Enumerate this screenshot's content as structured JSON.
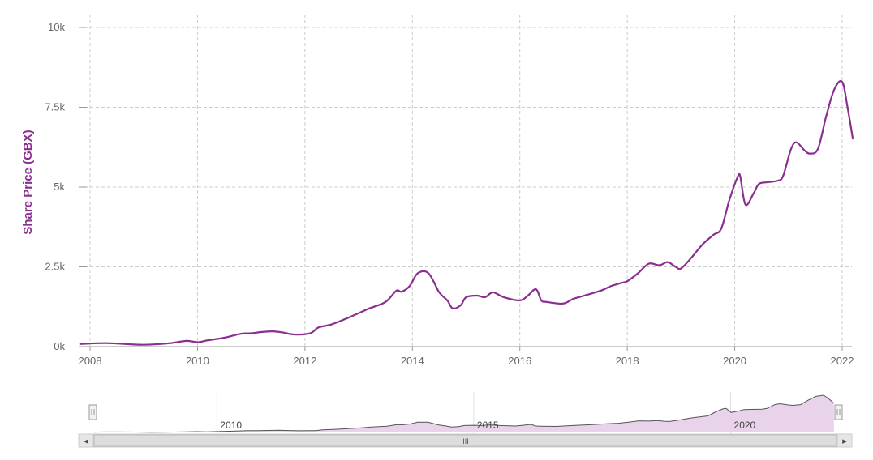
{
  "colors": {
    "series": "#8a2e8f",
    "grid": "#cccccc",
    "nav_fill": "#e9d3ea",
    "nav_line": "#555555",
    "scrollbar": "#e6e6e6"
  },
  "chart_data": {
    "type": "line",
    "ylabel": "Share Price (GBX)",
    "xlabel": "",
    "title": "",
    "ylim": [
      0,
      10000
    ],
    "xlim": [
      2007.8,
      2022.25
    ],
    "y_ticks": [
      0,
      2500,
      5000,
      7500,
      10000
    ],
    "y_tick_labels": [
      "0k",
      "2.5k",
      "5k",
      "7.5k",
      "10k"
    ],
    "x_ticks": [
      2008,
      2010,
      2012,
      2014,
      2016,
      2018,
      2020,
      2022
    ],
    "x_tick_labels": [
      "2008",
      "2010",
      "2012",
      "2014",
      "2016",
      "2018",
      "2020",
      "2022"
    ],
    "grid": true,
    "series": [
      {
        "x": [
          2007.8,
          2008.0,
          2008.3,
          2008.6,
          2008.9,
          2009.2,
          2009.5,
          2009.8,
          2010.0,
          2010.2,
          2010.5,
          2010.8,
          2011.0,
          2011.2,
          2011.4,
          2011.6,
          2011.8,
          2012.1,
          2012.25,
          2012.5,
          2012.8,
          2013.0,
          2013.2,
          2013.5,
          2013.7,
          2013.8,
          2013.95,
          2014.1,
          2014.3,
          2014.5,
          2014.65,
          2014.75,
          2014.9,
          2015.0,
          2015.2,
          2015.35,
          2015.5,
          2015.7,
          2016.0,
          2016.15,
          2016.3,
          2016.4,
          2016.5,
          2016.8,
          2017.0,
          2017.2,
          2017.5,
          2017.7,
          2017.9,
          2018.0,
          2018.2,
          2018.4,
          2018.6,
          2018.75,
          2018.9,
          2019.0,
          2019.2,
          2019.4,
          2019.6,
          2019.75,
          2019.9,
          2020.05,
          2020.1,
          2020.2,
          2020.35,
          2020.45,
          2020.6,
          2020.8,
          2020.9,
          2021.05,
          2021.15,
          2021.3,
          2021.4,
          2021.55,
          2021.7,
          2021.85,
          2022.0,
          2022.1,
          2022.2
        ],
        "y": [
          80,
          100,
          110,
          90,
          60,
          70,
          110,
          180,
          140,
          200,
          280,
          400,
          420,
          460,
          480,
          440,
          380,
          420,
          600,
          700,
          900,
          1050,
          1200,
          1400,
          1750,
          1720,
          1900,
          2300,
          2300,
          1700,
          1450,
          1200,
          1300,
          1550,
          1600,
          1550,
          1700,
          1550,
          1450,
          1600,
          1800,
          1450,
          1400,
          1350,
          1500,
          1600,
          1750,
          1900,
          2000,
          2050,
          2300,
          2600,
          2550,
          2650,
          2500,
          2450,
          2800,
          3200,
          3500,
          3700,
          4600,
          5300,
          5350,
          4450,
          4800,
          5100,
          5150,
          5200,
          5350,
          6200,
          6400,
          6150,
          6050,
          6200,
          7200,
          8050,
          8300,
          7500,
          6500
        ]
      }
    ],
    "navigator": {
      "x_labels": [
        "2010",
        "2015",
        "2020"
      ],
      "scrollbar_grip": "III",
      "left_arrow": "◂",
      "right_arrow": "▸",
      "handle_glyph": "|||"
    }
  }
}
